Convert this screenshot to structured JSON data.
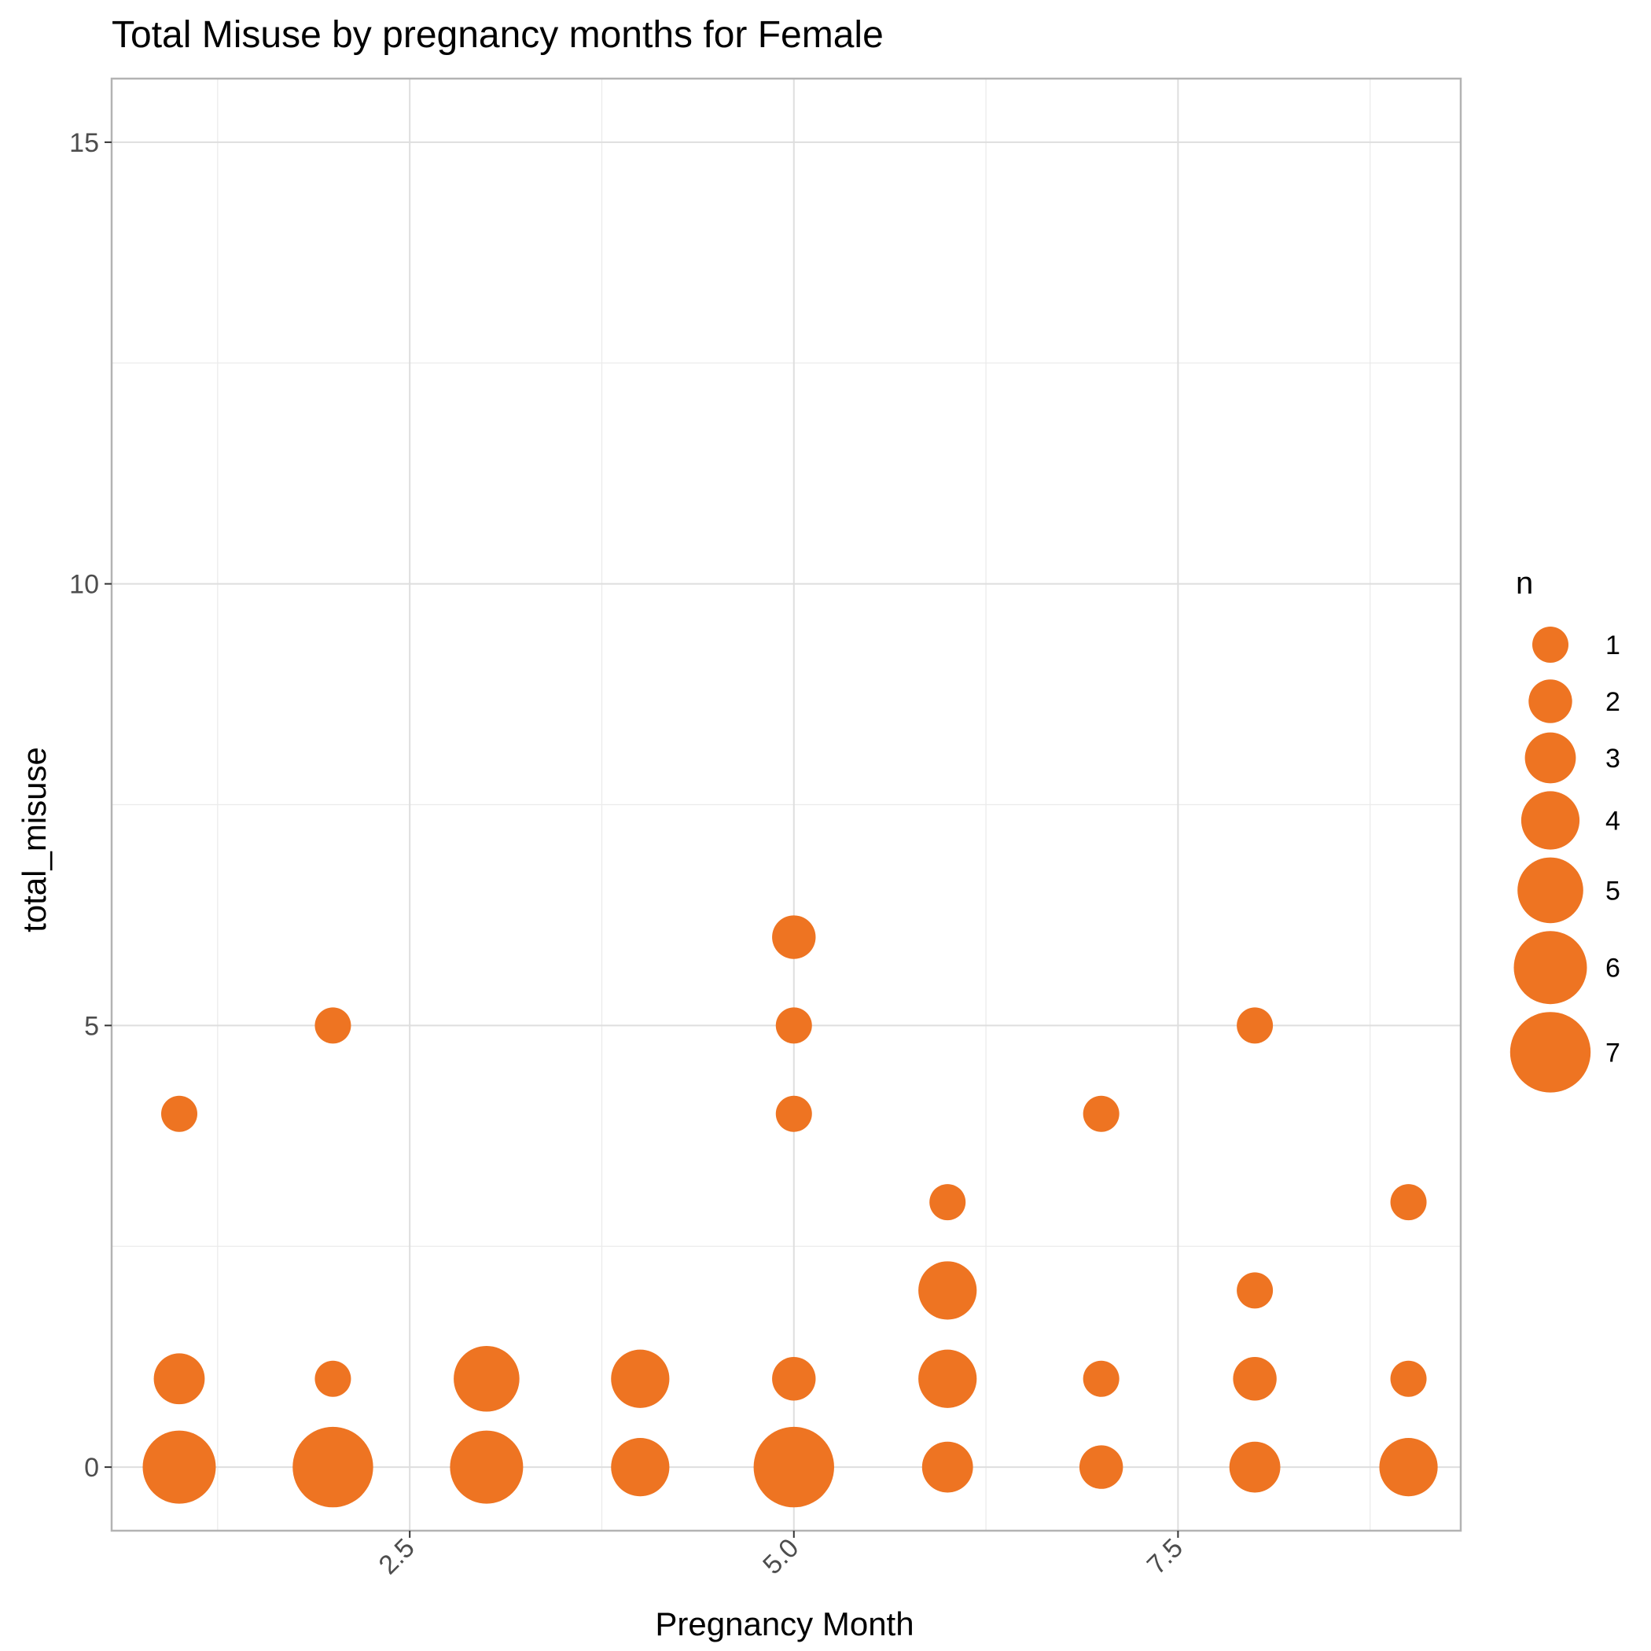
{
  "chart_data": {
    "type": "scatter",
    "title": "Total Misuse by pregnancy months for Female",
    "xlabel": "Pregnancy Month",
    "ylabel": "total_misuse",
    "xlim": [
      0.56,
      9.34
    ],
    "ylim": [
      -0.72,
      15.72
    ],
    "x_ticks": [
      2.5,
      5.0,
      7.5
    ],
    "x_tick_labels": [
      "2.5",
      "5.0",
      "7.5"
    ],
    "y_ticks": [
      0,
      5,
      10,
      15
    ],
    "y_tick_labels": [
      "0",
      "5",
      "10",
      "15"
    ],
    "grid": true,
    "point_color": "#EE7422",
    "legend": {
      "title": "n",
      "position": "right",
      "entries": [
        1,
        2,
        3,
        4,
        5,
        6,
        7
      ],
      "labels": [
        "1",
        "2",
        "3",
        "4",
        "5",
        "6",
        "7"
      ]
    },
    "points": [
      {
        "x": 1,
        "y": 0,
        "n": 6
      },
      {
        "x": 1,
        "y": 1,
        "n": 3
      },
      {
        "x": 1,
        "y": 4,
        "n": 1
      },
      {
        "x": 2,
        "y": 0,
        "n": 7
      },
      {
        "x": 2,
        "y": 1,
        "n": 1
      },
      {
        "x": 2,
        "y": 5,
        "n": 1
      },
      {
        "x": 3,
        "y": 0,
        "n": 6
      },
      {
        "x": 3,
        "y": 1,
        "n": 5
      },
      {
        "x": 4,
        "y": 0,
        "n": 4
      },
      {
        "x": 4,
        "y": 1,
        "n": 4
      },
      {
        "x": 5,
        "y": 0,
        "n": 7
      },
      {
        "x": 5,
        "y": 1,
        "n": 2
      },
      {
        "x": 5,
        "y": 4,
        "n": 1
      },
      {
        "x": 5,
        "y": 5,
        "n": 1
      },
      {
        "x": 5,
        "y": 6,
        "n": 2
      },
      {
        "x": 6,
        "y": 0,
        "n": 3
      },
      {
        "x": 6,
        "y": 1,
        "n": 4
      },
      {
        "x": 6,
        "y": 2,
        "n": 4
      },
      {
        "x": 6,
        "y": 3,
        "n": 1
      },
      {
        "x": 7,
        "y": 0,
        "n": 2
      },
      {
        "x": 7,
        "y": 1,
        "n": 1
      },
      {
        "x": 7,
        "y": 4,
        "n": 1
      },
      {
        "x": 8,
        "y": 0,
        "n": 3
      },
      {
        "x": 8,
        "y": 1,
        "n": 2
      },
      {
        "x": 8,
        "y": 2,
        "n": 1
      },
      {
        "x": 8,
        "y": 5,
        "n": 1
      },
      {
        "x": 9,
        "y": 0,
        "n": 4
      },
      {
        "x": 9,
        "y": 1,
        "n": 1
      },
      {
        "x": 9,
        "y": 3,
        "n": 1
      }
    ]
  }
}
